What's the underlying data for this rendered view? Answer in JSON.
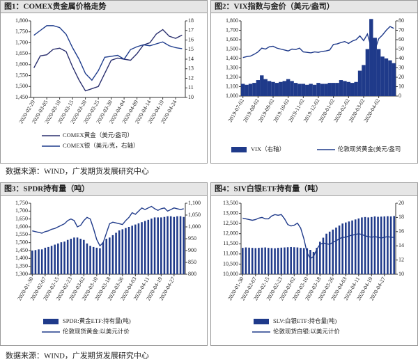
{
  "chart_data": [
    {
      "type": "line",
      "title": "图1：COMEX贵金属价格走势",
      "categories": [
        "2020-02-29",
        null,
        "2020-03-05",
        null,
        "2020-03-10",
        null,
        "2020-03-15",
        null,
        "2020-03-20",
        null,
        "2020-03-25",
        null,
        "2020-03-30",
        null,
        "2020-04-04",
        null,
        "2020-04-09",
        null,
        "2020-04-14",
        null,
        "2020-04-19",
        null,
        "2020-04-24",
        null
      ],
      "series": [
        {
          "name": "COMEX黄金（美元/盎司）",
          "type": "line",
          "color": "#2a2f6e",
          "values": [
            1585,
            1640,
            1645,
            1670,
            1675,
            1660,
            1590,
            1530,
            1480,
            1490,
            1500,
            1560,
            1620,
            1630,
            1625,
            1620,
            1650,
            1690,
            1700,
            1740,
            1760,
            1730,
            1720,
            1735
          ]
        },
        {
          "name": "COMEX银（美元/克，右轴）",
          "type": "line",
          "color": "#1e3c8c",
          "axis": "y2",
          "values": [
            16.5,
            17.0,
            17.5,
            17.5,
            17.3,
            16.6,
            15.2,
            14.0,
            12.5,
            11.8,
            12.8,
            14.2,
            14.3,
            14.4,
            14.0,
            15.0,
            15.3,
            15.5,
            15.4,
            15.6,
            15.8,
            15.4,
            15.2,
            15.1
          ]
        }
      ],
      "ylim": [
        1450,
        1800
      ],
      "yticks": [
        {
          "value": 1450,
          "label": "1,450"
        },
        {
          "value": 1500,
          "label": "1,500"
        },
        {
          "value": 1550,
          "label": "1,550"
        },
        {
          "value": 1600,
          "label": "1,600"
        },
        {
          "value": 1650,
          "label": "1,650"
        },
        {
          "value": 1700,
          "label": "1,700"
        },
        {
          "value": 1750,
          "label": "1,750"
        },
        {
          "value": 1800,
          "label": "1,800"
        }
      ],
      "y2lim": [
        10,
        18
      ],
      "y2ticks": [
        10,
        11,
        12,
        13,
        14,
        15,
        16,
        17,
        18
      ]
    },
    {
      "type": "combo",
      "title": "图2：VIX指数与金价（美元/盎司）",
      "categories": [
        "2019-07-02",
        null,
        null,
        null,
        "2019-08-02",
        null,
        null,
        null,
        "2019-09-02",
        null,
        null,
        null,
        "2019-10-02",
        null,
        null,
        null,
        "2019-11-02",
        null,
        null,
        null,
        "2019-12-02",
        null,
        null,
        null,
        "2020-01-02",
        null,
        null,
        null,
        "2020-02-02",
        null,
        null,
        null,
        "2020-03-02",
        null,
        null,
        null,
        "2020-04-02",
        null,
        null,
        null,
        null
      ],
      "series": [
        {
          "name": "VIX（右轴）",
          "type": "area",
          "color": "#1f3a8a",
          "axis": "y2",
          "values": [
            13,
            12,
            13,
            14,
            17,
            22,
            18,
            16,
            15,
            14,
            15,
            16,
            18,
            16,
            14,
            13,
            13,
            12,
            13,
            12,
            14,
            13,
            13,
            14,
            14,
            14,
            17,
            16,
            15,
            14,
            15,
            27,
            33,
            50,
            82,
            62,
            50,
            42,
            40,
            38,
            35
          ]
        },
        {
          "name": "伦敦现货黄金(美元/盎司",
          "type": "line",
          "color": "#1f3a8a",
          "values": [
            1410,
            1420,
            1425,
            1445,
            1470,
            1510,
            1500,
            1525,
            1530,
            1510,
            1500,
            1490,
            1480,
            1500,
            1495,
            1510,
            1470,
            1465,
            1460,
            1470,
            1465,
            1475,
            1480,
            1490,
            1550,
            1555,
            1570,
            1580,
            1560,
            1585,
            1600,
            1640,
            1590,
            1660,
            1520,
            1490,
            1610,
            1650,
            1700,
            1740,
            1720
          ]
        }
      ],
      "ylim": [
        1000,
        1800
      ],
      "yticks": [
        {
          "value": 1000,
          "label": "1,000"
        },
        {
          "value": 1100,
          "label": "1,100"
        },
        {
          "value": 1200,
          "label": "1,200"
        },
        {
          "value": 1300,
          "label": "1,300"
        },
        {
          "value": 1400,
          "label": "1,400"
        },
        {
          "value": 1500,
          "label": "1,500"
        },
        {
          "value": 1600,
          "label": "1,600"
        },
        {
          "value": 1700,
          "label": "1,700"
        },
        {
          "value": 1800,
          "label": "1,800"
        }
      ],
      "y2lim": [
        0,
        80
      ],
      "y2ticks": [
        0,
        10,
        20,
        30,
        40,
        50,
        60,
        70,
        80
      ]
    },
    {
      "type": "combo",
      "title": "图3：SPDR持有量（吨）",
      "categories": [
        "2020-01-30",
        null,
        null,
        null,
        "2020-02-07",
        null,
        null,
        null,
        "2020-02-15",
        null,
        null,
        null,
        "2020-02-23",
        null,
        null,
        null,
        "2020-03-02",
        null,
        null,
        null,
        "2020-03-10",
        null,
        null,
        null,
        "2020-03-18",
        null,
        null,
        null,
        "2020-03-26",
        null,
        null,
        null,
        "2020-04-03",
        null,
        null,
        null,
        "2020-04-11",
        null,
        null,
        null,
        "2020-04-19",
        null,
        null,
        null,
        "2020-04-27",
        null,
        null,
        null
      ],
      "series": [
        {
          "name": "SPDR:黄金ETF:持有量(吨)",
          "type": "bar",
          "color": "#1f3a8a",
          "axis": "y2",
          "values": [
            900,
            902,
            905,
            905,
            912,
            915,
            920,
            925,
            930,
            935,
            938,
            945,
            950,
            955,
            955,
            950,
            945,
            930,
            920,
            915,
            912,
            910,
            935,
            950,
            955,
            965,
            975,
            985,
            990,
            995,
            1000,
            1005,
            1010,
            1015,
            1020,
            1025,
            1030,
            1035,
            1040,
            1040,
            1040,
            1042,
            1045,
            1045,
            1042,
            1045,
            1045,
            1042
          ]
        },
        {
          "name": "伦敦现货黄金:以美元计价",
          "type": "line",
          "color": "#1f3a8a",
          "values": [
            1575,
            1570,
            1565,
            1560,
            1570,
            1575,
            1585,
            1590,
            1600,
            1610,
            1620,
            1640,
            1650,
            1640,
            1600,
            1610,
            1640,
            1660,
            1650,
            1590,
            1520,
            1480,
            1500,
            1560,
            1620,
            1630,
            1625,
            1620,
            1615,
            1640,
            1660,
            1690,
            1680,
            1700,
            1720,
            1710,
            1720,
            1730,
            1715,
            1705,
            1715,
            1720,
            1700,
            1710,
            1720,
            1715,
            1710,
            1715
          ]
        }
      ],
      "ylim": [
        1300,
        1750
      ],
      "yticks": [
        {
          "value": 1300,
          "label": "1,300"
        },
        {
          "value": 1350,
          "label": "1,350"
        },
        {
          "value": 1400,
          "label": "1,400"
        },
        {
          "value": 1450,
          "label": "1,450"
        },
        {
          "value": 1500,
          "label": "1,500"
        },
        {
          "value": 1550,
          "label": "1,550"
        },
        {
          "value": 1600,
          "label": "1,600"
        },
        {
          "value": 1650,
          "label": "1,650"
        },
        {
          "value": 1700,
          "label": "1,700"
        },
        {
          "value": 1750,
          "label": "1,750"
        }
      ],
      "y2lim": [
        800,
        1100
      ],
      "y2ticks": [
        800,
        850,
        900,
        950,
        {
          "value": 1000,
          "label": "1,000"
        },
        {
          "value": 1050,
          "label": "1,050"
        },
        {
          "value": 1100,
          "label": "1,100"
        }
      ]
    },
    {
      "type": "combo",
      "title": "图4：SIV白银ETF持有量（吨）",
      "categories": [
        "2020-01-30",
        null,
        null,
        null,
        "2020-02-07",
        null,
        null,
        null,
        "2020-02-15",
        null,
        null,
        null,
        "2020-02-23",
        null,
        null,
        null,
        "2020-03-02",
        null,
        null,
        null,
        "2020-03-10",
        null,
        null,
        null,
        "2020-03-18",
        null,
        null,
        null,
        "2020-03-26",
        null,
        null,
        null,
        "2020-04-03",
        null,
        null,
        null,
        "2020-04-11",
        null,
        null,
        null,
        "2020-04-19",
        null,
        null,
        null,
        "2020-04-27",
        null,
        null,
        null
      ],
      "series": [
        {
          "name": "SLV:白银ETF:持仓量(吨)",
          "type": "bar",
          "color": "#1f3a8a",
          "values": [
            11300,
            11320,
            11310,
            11300,
            11290,
            11300,
            11310,
            11320,
            11300,
            11290,
            11280,
            11300,
            11310,
            11320,
            11330,
            11340,
            11330,
            11320,
            11300,
            11290,
            11280,
            11200,
            11100,
            11300,
            11600,
            11800,
            12000,
            12100,
            12200,
            12300,
            12400,
            12500,
            12550,
            12600,
            12650,
            12700,
            12750,
            12800,
            12820,
            12800,
            12820,
            12850,
            12830,
            12840,
            12850,
            12860,
            12850,
            12870
          ]
        },
        {
          "name": "伦敦现货白银:以美元计价",
          "type": "line",
          "color": "#1f3a8a",
          "axis": "y2",
          "values": [
            17.9,
            17.8,
            17.7,
            17.6,
            17.7,
            17.9,
            18.0,
            17.8,
            17.8,
            18.2,
            18.4,
            18.3,
            18.4,
            17.8,
            17.0,
            16.8,
            16.9,
            17.2,
            16.5,
            15.0,
            13.0,
            12.2,
            12.5,
            13.5,
            14.2,
            14.4,
            14.3,
            14.2,
            14.5,
            14.7,
            15.0,
            15.2,
            15.2,
            15.4,
            15.5,
            15.6,
            15.7,
            15.6,
            15.4,
            15.3,
            15.2,
            15.3,
            15.2,
            15.1,
            15.2,
            15.3,
            15.2,
            15.2
          ]
        }
      ],
      "ylim": [
        10000,
        13500
      ],
      "yticks": [
        {
          "value": 10000,
          "label": "10,000"
        },
        {
          "value": 10500,
          "label": "10,500"
        },
        {
          "value": 11000,
          "label": "11,000"
        },
        {
          "value": 11500,
          "label": "11,500"
        },
        {
          "value": 12000,
          "label": "12,000"
        },
        {
          "value": 12500,
          "label": "12,500"
        },
        {
          "value": 13000,
          "label": "13,000"
        },
        {
          "value": 13500,
          "label": "13,500"
        }
      ],
      "y2lim": [
        10,
        20
      ],
      "y2ticks": [
        10,
        12,
        14,
        16,
        18,
        20
      ]
    }
  ],
  "source_notes": [
    "数据来源：WIND，广发期货发展研究中心",
    "数据来源：WIND，广发期货发展研究中心"
  ]
}
